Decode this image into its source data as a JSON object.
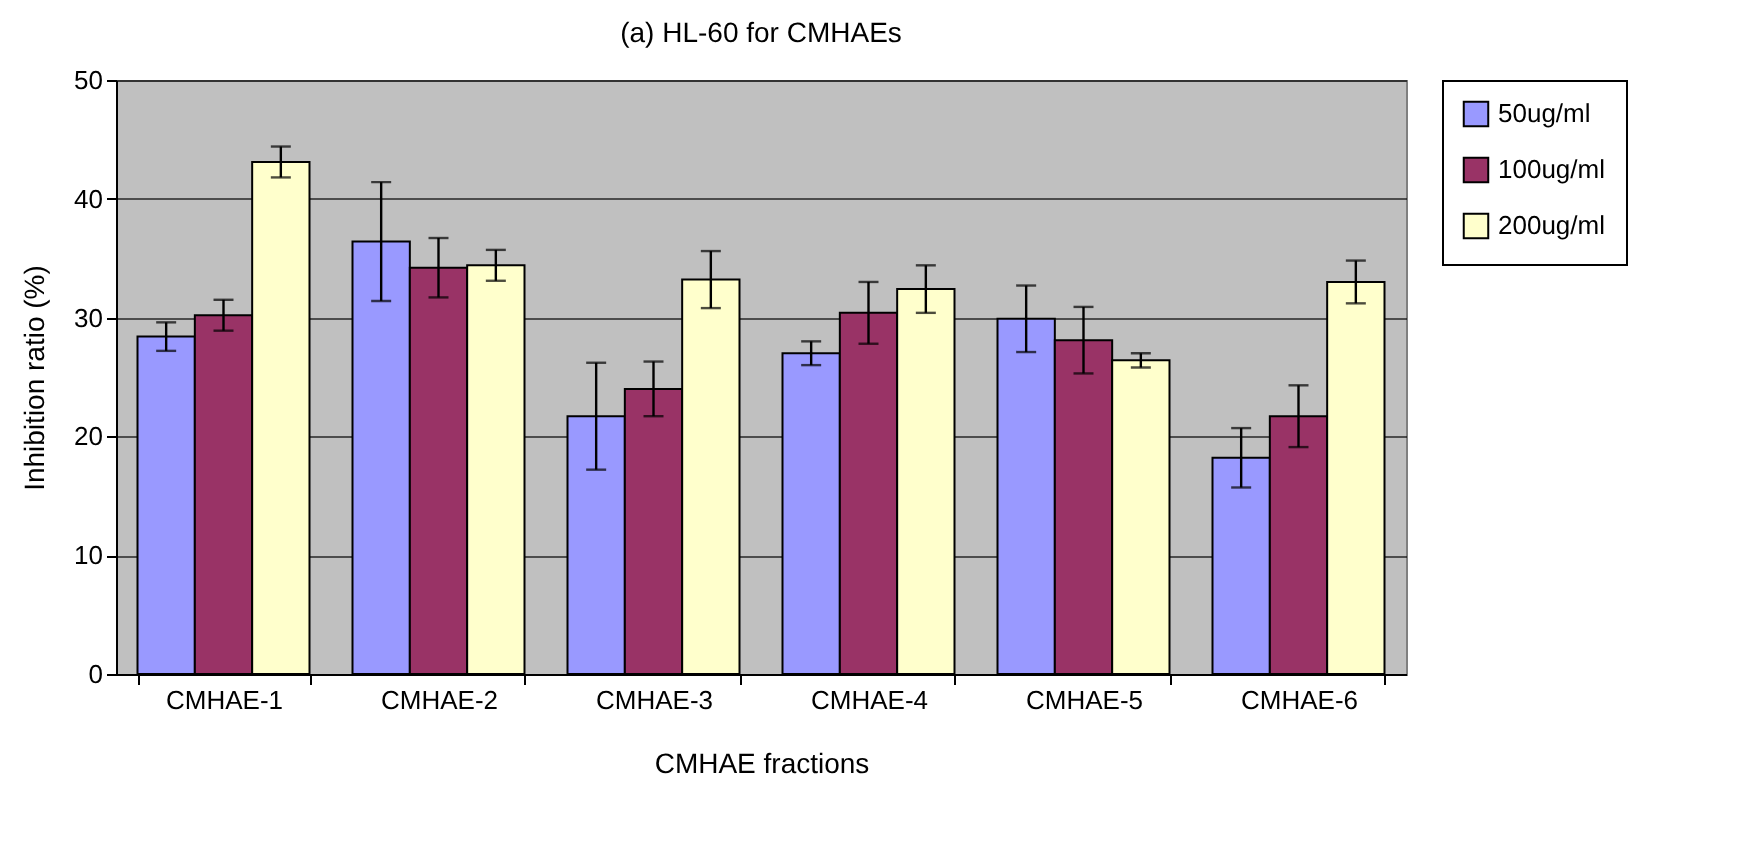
{
  "chart_data": {
    "type": "bar",
    "title": "(a) HL-60 for CMHAEs",
    "xlabel": "CMHAE fractions",
    "ylabel": "Inhibition ratio (%)",
    "categories": [
      "CMHAE-1",
      "CMHAE-2",
      "CMHAE-3",
      "CMHAE-4",
      "CMHAE-5",
      "CMHAE-6"
    ],
    "series": [
      {
        "name": "50ug/ml",
        "color": "#9999ff",
        "values": [
          28.4,
          36.4,
          21.7,
          27.0,
          29.9,
          18.2
        ],
        "errors": [
          1.2,
          5.0,
          4.5,
          1.0,
          2.8,
          2.5
        ]
      },
      {
        "name": "100ug/ml",
        "color": "#993366",
        "values": [
          30.2,
          34.2,
          24.0,
          30.4,
          28.1,
          21.7
        ],
        "errors": [
          1.3,
          2.5,
          2.3,
          2.6,
          2.8,
          2.6
        ]
      },
      {
        "name": "200ug/ml",
        "color": "#ffffcc",
        "values": [
          43.1,
          34.4,
          33.2,
          32.4,
          26.4,
          33.0
        ],
        "errors": [
          1.3,
          1.3,
          2.4,
          2.0,
          0.6,
          1.8
        ]
      }
    ],
    "ylim": [
      0,
      50
    ],
    "yticks": [
      0,
      10,
      20,
      30,
      40,
      50
    ],
    "grid": "y",
    "legend": "right"
  }
}
